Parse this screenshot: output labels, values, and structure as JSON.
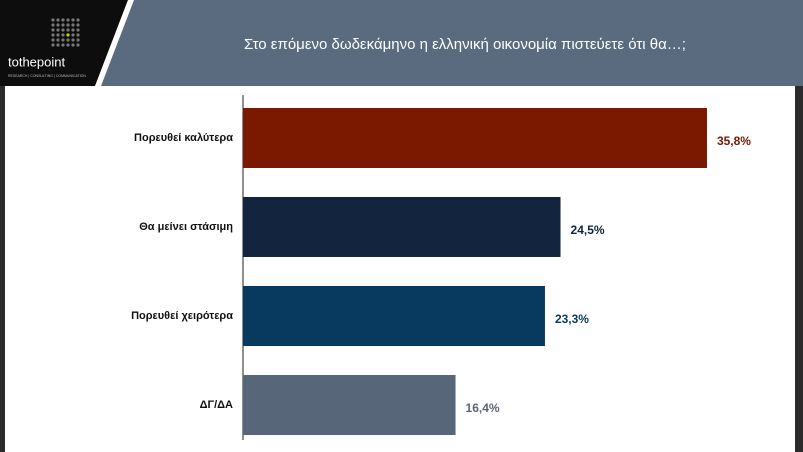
{
  "header": {
    "title": "Στο επόμενο δωδεκάμηνο η ελληνική οικονομία πιστεύετε ότι θα…;",
    "logo": "tothepoint",
    "tagline": "RESEARCH | CONSULTING | COMMUNICATION"
  },
  "chart_data": {
    "type": "hbar",
    "categories": [
      "Πορευθεί καλύτερα",
      "Θα μείνει στάσιμη",
      "Πορευθεί χειρότερα",
      "ΔΓ/ΔΑ"
    ],
    "values": [
      35.8,
      24.5,
      23.3,
      16.4
    ],
    "value_labels": [
      "35,8%",
      "24,5%",
      "23,3%",
      "16,4%"
    ],
    "colors": [
      "#7a1800",
      "#13243f",
      "#073a5e",
      "#58667a"
    ]
  }
}
